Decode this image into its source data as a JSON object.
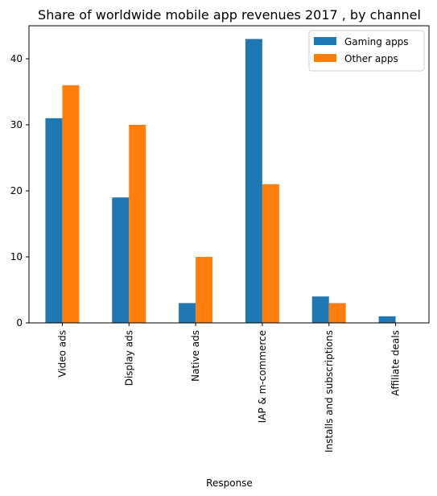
{
  "chart_data": {
    "type": "bar",
    "title": "Share of worldwide mobile app revenues 2017 , by channel",
    "xlabel": "Response",
    "ylabel": "",
    "ylim": [
      0,
      45
    ],
    "yticks": [
      0,
      10,
      20,
      30,
      40
    ],
    "categories": [
      "Video ads",
      "Display ads",
      "Native ads",
      "IAP & m-commerce",
      "Installs and subscriptions",
      "Affiliate deals"
    ],
    "series": [
      {
        "name": "Gaming apps",
        "color": "#1f77b4",
        "values": [
          31,
          19,
          3,
          43,
          4,
          1
        ]
      },
      {
        "name": "Other apps",
        "color": "#ff7f0e",
        "values": [
          36,
          30,
          10,
          21,
          3,
          0
        ]
      }
    ],
    "legend_position": "top-right",
    "grid": false
  }
}
